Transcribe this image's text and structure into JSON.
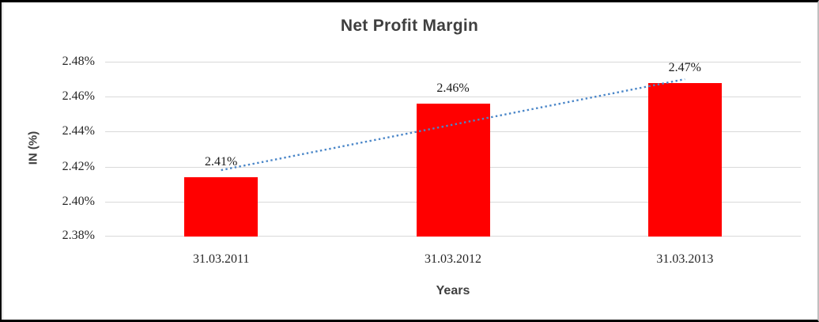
{
  "chart_data": {
    "type": "bar",
    "title": "Net Profit Margin",
    "categories": [
      "31.03.2011",
      "31.03.2012",
      "31.03.2013"
    ],
    "values": [
      2.414,
      2.456,
      2.468
    ],
    "bar_labels": [
      "2.41%",
      "2.46%",
      "2.47%"
    ],
    "xlabel": "Years",
    "ylabel": "IN (%)",
    "ylim": [
      2.38,
      2.48
    ],
    "yticks": [
      2.38,
      2.4,
      2.42,
      2.44,
      2.46,
      2.48
    ],
    "ytick_labels": [
      "2.38%",
      "2.40%",
      "2.42%",
      "2.44%",
      "2.46%",
      "2.48%"
    ],
    "grid": true,
    "legend": "none",
    "colors": {
      "bar": "#ff0000",
      "gridline": "#d9d9d9",
      "title": "#3f3f3f",
      "tick_text": "#262626",
      "trendline": "#4a86c8"
    },
    "trendline": {
      "type": "linear",
      "style": "dotted",
      "color": "#4a86c8",
      "start_value": 2.418,
      "end_value": 2.47
    }
  }
}
